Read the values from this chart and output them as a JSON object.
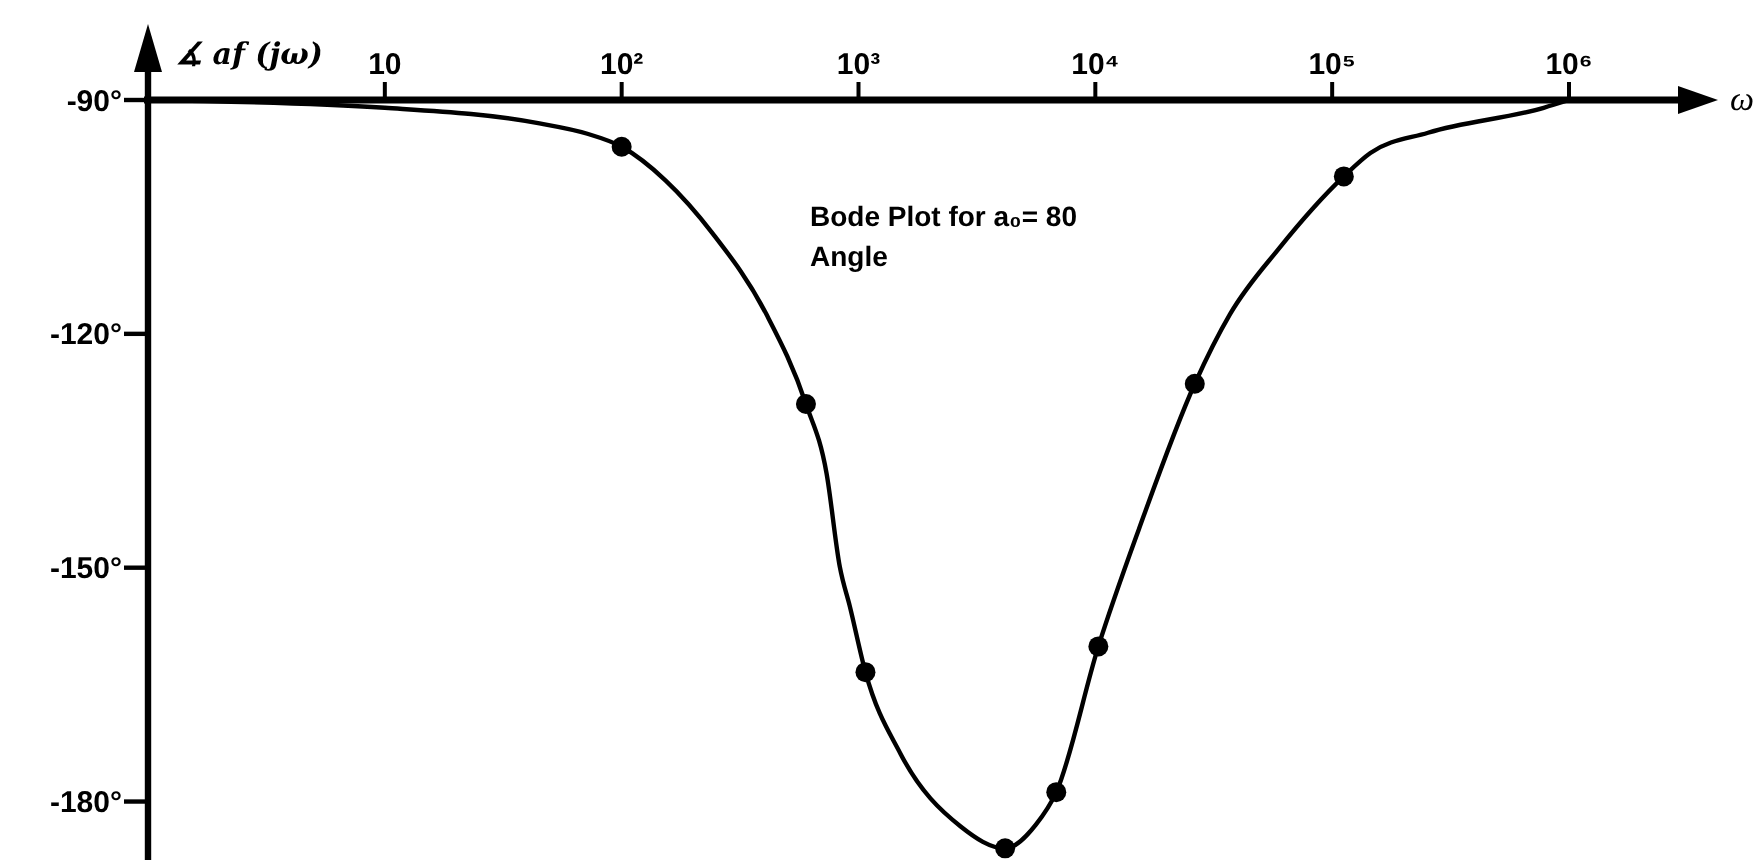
{
  "chart_data": {
    "type": "line",
    "title": "Bode Plot for a₀= 80",
    "subtitle": "Angle",
    "xlabel": "ω",
    "ylabel": "∡ af (jω)",
    "log": "x",
    "xlim": [
      1,
      3000000
    ],
    "xticks": [
      10,
      {
        "value": 100,
        "label": "10²"
      },
      {
        "value": 1000,
        "label": "10³"
      },
      {
        "value": 10000,
        "label": "10⁴"
      },
      {
        "value": 100000,
        "label": "10⁵"
      },
      {
        "value": 1000000,
        "label": "10⁶"
      }
    ],
    "ylim": [
      -187.5,
      -90
    ],
    "yticks": [
      {
        "value": -90,
        "label": "-90°"
      },
      {
        "value": -120,
        "label": "-120°"
      },
      {
        "value": -150,
        "label": "-150°"
      },
      {
        "value": -180,
        "label": "-180°"
      }
    ],
    "series": [
      {
        "color": "#000000",
        "x": [
          1,
          10,
          45,
          71,
          100,
          153,
          242,
          407,
          600,
          733,
          834,
          920,
          1070,
          1500,
          2700,
          4160,
          5600,
          6840,
          10300,
          15300,
          26300,
          37000,
          59800,
          112000,
          145000,
          254000,
          782000,
          1000000
        ],
        "values": [
          -90,
          -91,
          -93,
          -94.3,
          -96,
          -100.3,
          -107.1,
          -117.4,
          -129,
          -137.9,
          -149.9,
          -155,
          -163.4,
          -173.8,
          -183.2,
          -186,
          -183,
          -178.8,
          -160.1,
          -145,
          -126.4,
          -117.5,
          -109,
          -99.8,
          -96.8,
          -94.2,
          -91,
          -90
        ]
      },
      {
        "type": "scatter",
        "color": "#000000",
        "marker": "circle",
        "x": [
          100,
          600,
          1070,
          4160,
          6840,
          10300,
          26300,
          112000
        ],
        "values": [
          -96,
          -129,
          -163.4,
          -186,
          -178.8,
          -160.1,
          -126.4,
          -99.8
        ]
      }
    ]
  }
}
